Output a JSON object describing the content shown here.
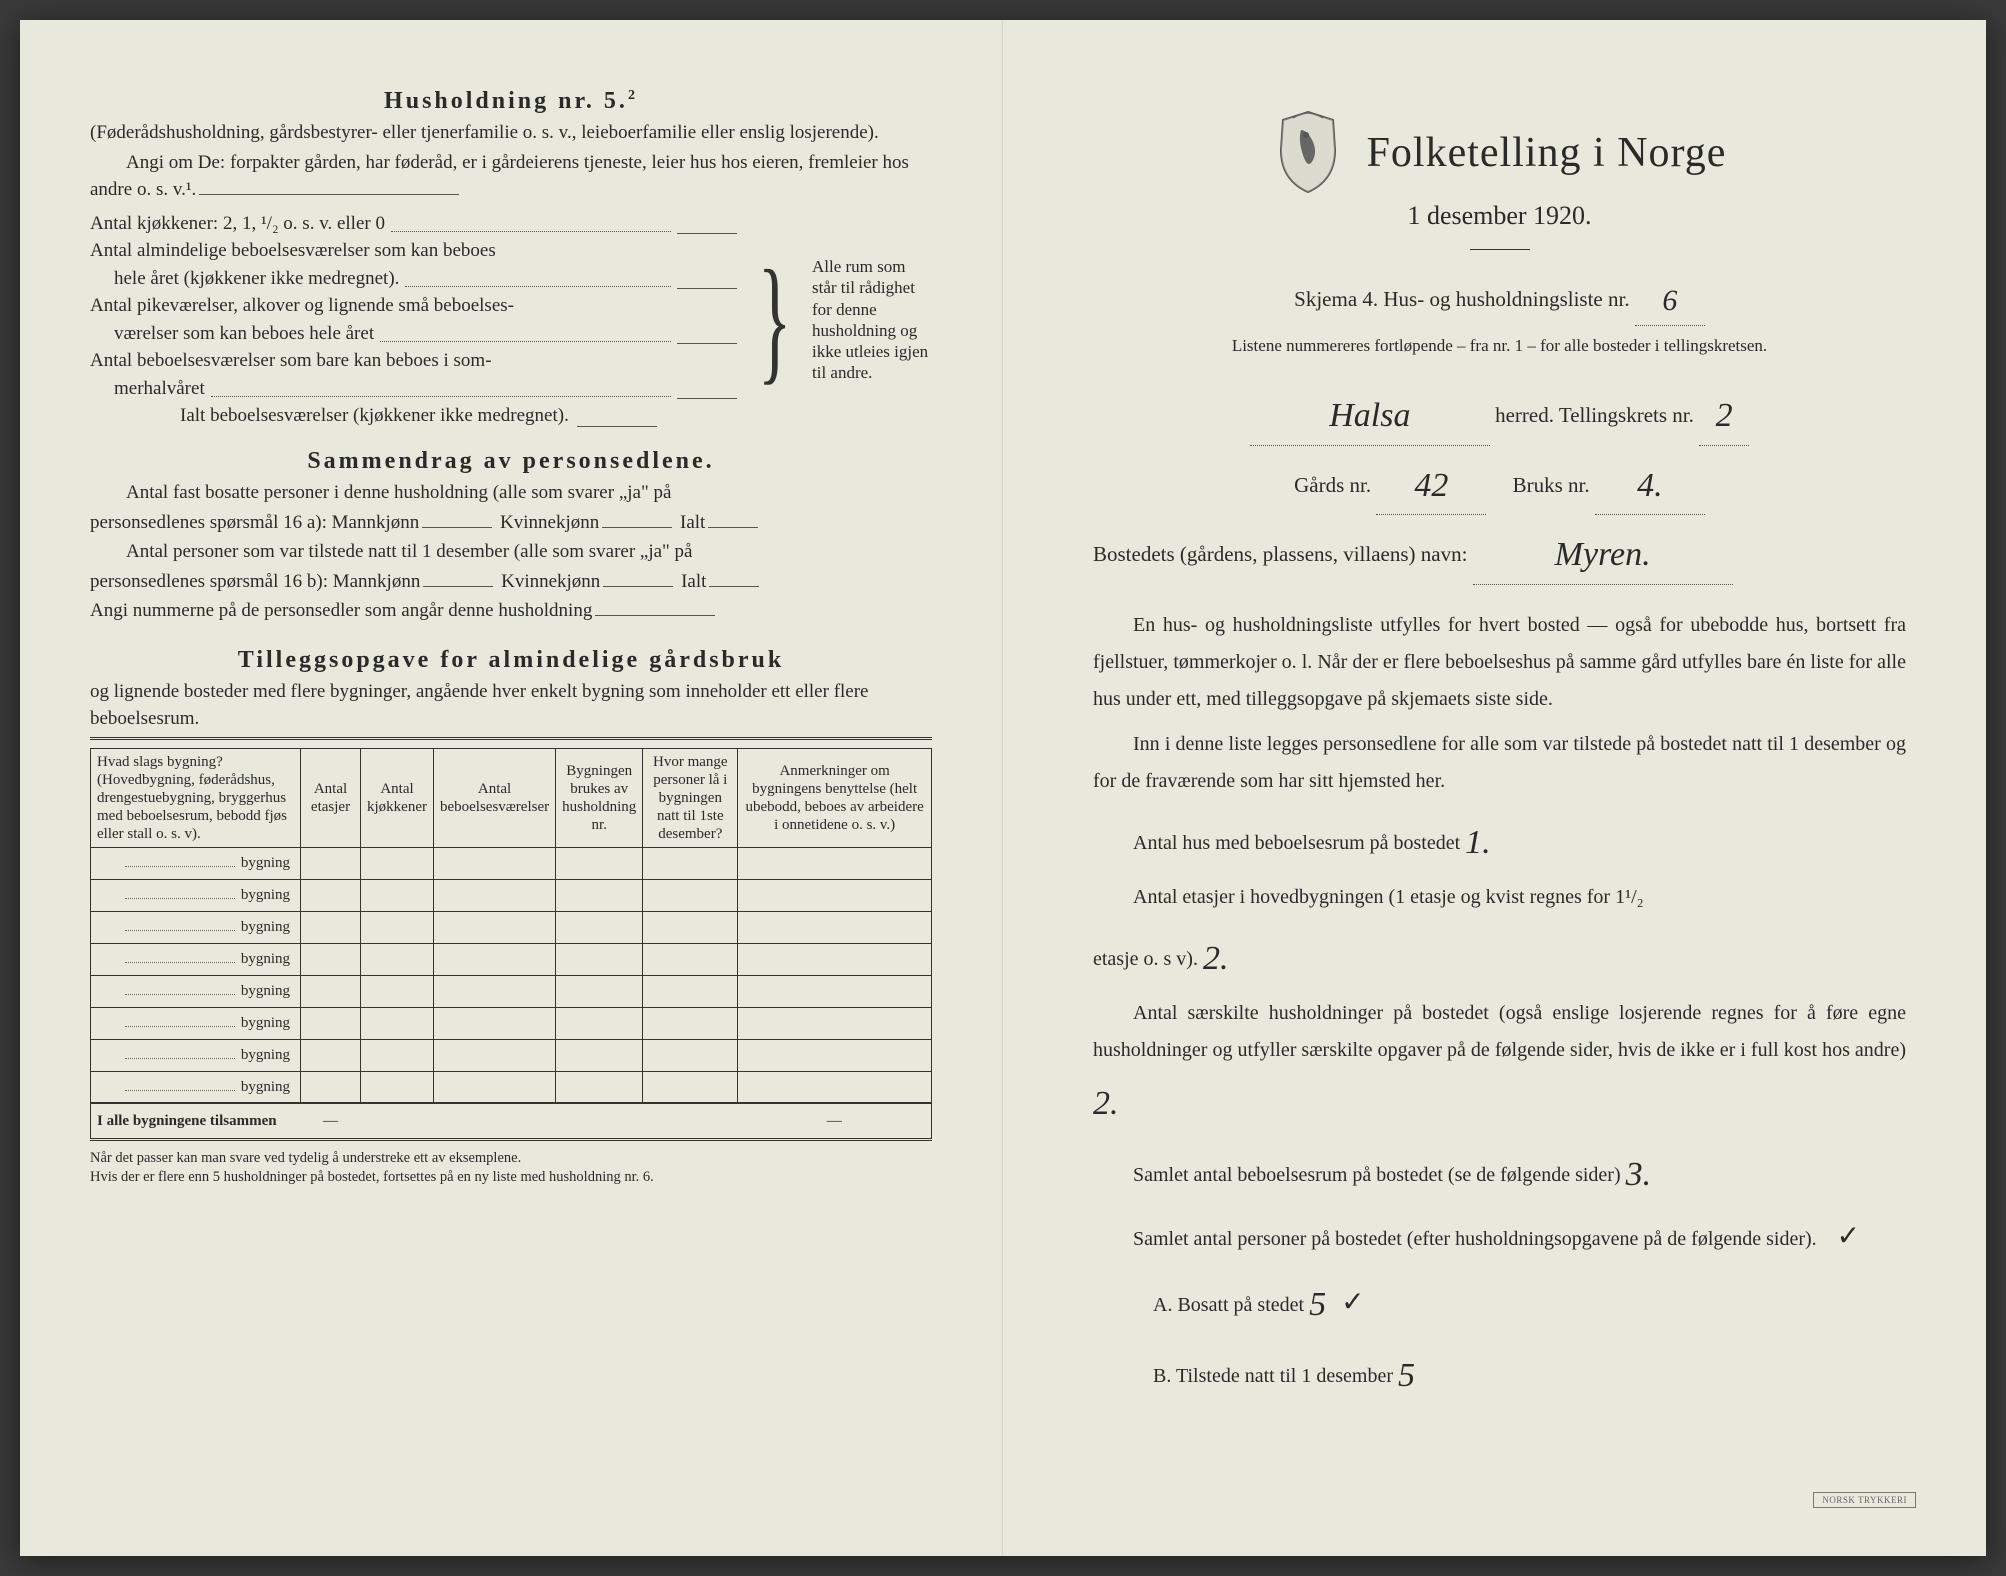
{
  "left": {
    "h5_title": "Husholdning nr. 5.",
    "h5_sup": "2",
    "h5_p1": "(Føderådshusholdning, gårdsbestyrer- eller tjenerfamilie o. s. v., leieboerfamilie eller enslig losjerende).",
    "h5_p2": "Angi om De: forpakter gården, har føderåd, er i gårdeierens tjeneste, leier hus hos eieren, fremleier hos andre o. s. v.¹.",
    "rows": {
      "r1": "Antal kjøkkener: 2, 1, ¹/₂ o. s. v. eller 0",
      "r2a": "Antal almindelige beboelsesværelser som kan beboes",
      "r2b": "hele året (kjøkkener ikke medregnet).",
      "r3a": "Antal pikeværelser, alkover og lignende små beboelses-",
      "r3b": "værelser som kan beboes hele året",
      "r4a": "Antal beboelsesværelser som bare kan beboes i som-",
      "r4b": "merhalvåret",
      "r5": "Ialt beboelsesværelser (kjøkkener ikke medregnet).",
      "brace_note": "Alle rum som står til rådighet for denne husholdning og ikke utleies igjen til andre."
    },
    "samm_title": "Sammendrag av personsedlene.",
    "samm_p1a": "Antal fast bosatte personer i denne husholdning (alle som svarer „ja\" på",
    "samm_p1b": "personsedlenes spørsmål 16 a): Mannkjønn",
    "samm_kv": "Kvinnekjønn",
    "samm_ialt": "Ialt",
    "samm_p2a": "Antal personer som var tilstede natt til 1 desember (alle som svarer „ja\" på",
    "samm_p2b": "personsedlenes spørsmål 16 b): Mannkjønn",
    "samm_p3": "Angi nummerne på de personsedler som angår denne husholdning",
    "tillegg_title": "Tilleggsopgave for almindelige gårdsbruk",
    "tillegg_sub": "og lignende bosteder med flere bygninger, angående hver enkelt bygning som inneholder ett eller flere beboelsesrum.",
    "table": {
      "headers": [
        "Hvad slags bygning?\n(Hovedbygning, føderådshus, drengestuebygning, bryggerhus med beboelsesrum, bebodd fjøs eller stall o. s. v).",
        "Antal etasjer",
        "Antal kjøkkener",
        "Antal beboelsesværelser",
        "Bygningen brukes av husholdning nr.",
        "Hvor mange personer lå i bygningen natt til 1ste desember?",
        "Anmerkninger om bygningens benyttelse (helt ubebodd, beboes av arbeidere i onnetidene o. s. v.)"
      ],
      "row_label": "bygning",
      "row_count": 8,
      "total_label": "I alle bygningene tilsammen"
    },
    "footnote": "Når det passer kan man svare ved tydelig å understreke ett av eksemplene.\nHvis der er flere enn 5 husholdninger på bostedet, fortsettes på en ny liste med husholdning nr. 6."
  },
  "right": {
    "title": "Folketelling i Norge",
    "subtitle": "1 desember 1920.",
    "skjema": "Skjema 4.  Hus- og husholdningsliste nr.",
    "skjema_val": "6",
    "listene": "Listene nummereres fortløpende – fra nr. 1 – for alle bosteder i tellingskretsen.",
    "herred_val": "Halsa",
    "herred_lbl": "herred.   Tellingskrets nr.",
    "krets_val": "2",
    "gards_lbl": "Gårds nr.",
    "gards_val": "42",
    "bruks_lbl": "Bruks nr.",
    "bruks_val": "4.",
    "bosted_lbl": "Bostedets (gårdens, plassens, villaens) navn:",
    "bosted_val": "Myren.",
    "para1": "En hus- og husholdningsliste utfylles for hvert bosted — også for ubebodde hus, bortsett fra fjellstuer, tømmerkojer o. l.  Når der er flere beboelseshus på samme gård utfylles bare én liste for alle hus under ett, med tilleggsopgave på skjemaets siste side.",
    "para2": "Inn i denne liste legges personsedlene for alle som var tilstede på bostedet natt til 1 desember og for de fraværende som har sitt hjemsted her.",
    "l_hus": "Antal hus med beboelsesrum på bostedet",
    "v_hus": "1.",
    "l_etasjer_a": "Antal etasjer i hovedbygningen (1 etasje og kvist regnes for 1¹/₂",
    "l_etasjer_b": "etasje o. s v).",
    "v_etasjer": "2.",
    "l_hushold_a": "Antal særskilte husholdninger på bostedet (også enslige losjerende regnes for å føre egne husholdninger og utfyller særskilte opgaver på de følgende sider, hvis de ikke er i full kost hos andre)",
    "v_hushold": "2.",
    "l_bebo": "Samlet antal beboelsesrum på bostedet (se de følgende sider)",
    "v_bebo": "3.",
    "l_pers": "Samlet antal personer på bostedet (efter husholdningsopgavene på de følgende sider).",
    "l_A": "A.  Bosatt på stedet",
    "v_A": "5",
    "l_B": "B.  Tilstede natt til 1 desember",
    "v_B": "5",
    "check": "✓",
    "stamp": "NORSK TRYKKERI"
  },
  "colors": {
    "paper": "#e8e8dc",
    "ink": "#2a2a2a",
    "hand": "#2a2a2a"
  }
}
